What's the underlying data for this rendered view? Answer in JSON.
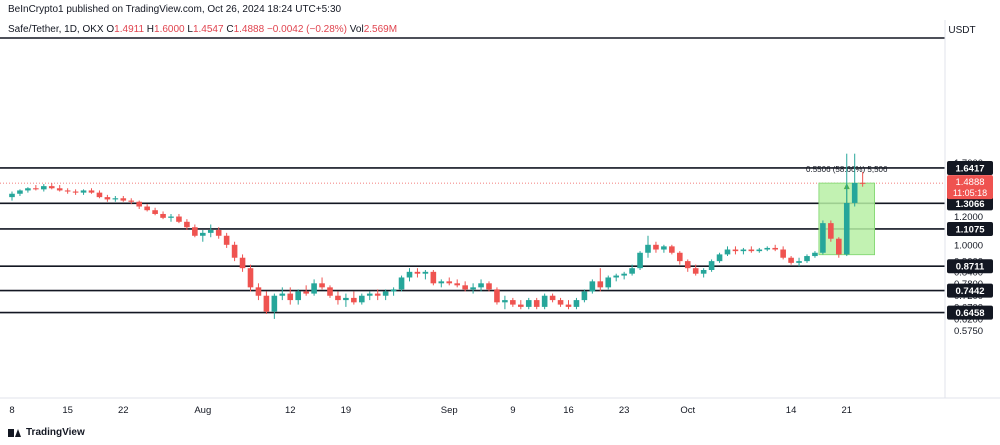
{
  "header": {
    "publish_line": "BeInCrypto1 published on TradingView.com, Oct 26, 2024 18:24 UTC+5:30",
    "symbol": "Safe/Tether, 1D, OKX",
    "o_label": "O",
    "o_value": "1.4911",
    "h_label": "H",
    "h_value": "1.6000",
    "l_label": "L",
    "l_value": "1.4547",
    "c_label": "C",
    "c_value": "1.4888",
    "change": "−0.0042 (−0.28%)",
    "vol_label": "Vol",
    "vol_value": "2.569M"
  },
  "footer": {
    "brand": "TradingView"
  },
  "colors": {
    "up": "#26a69a",
    "down": "#ef5350",
    "level_line": "#131722",
    "current_price": "#ef5350",
    "measure_fill": "#b7f0a4",
    "measure_border": "#7cd46b"
  },
  "chart_data": {
    "type": "candlestick",
    "currency": "USDT",
    "y_axis_ticks": [
      "1.7000",
      "1.4000",
      "1.2000",
      "1.0000",
      "0.9000",
      "0.8400",
      "0.7800",
      "0.7200",
      "0.6700",
      "0.6200",
      "0.5750"
    ],
    "x_axis_ticks": [
      "8",
      "15",
      "22",
      "Aug",
      "12",
      "19",
      "Sep",
      "9",
      "16",
      "23",
      "Oct",
      "14",
      "21"
    ],
    "x_tick_indices": [
      0,
      7,
      14,
      24,
      35,
      42,
      55,
      63,
      70,
      77,
      85,
      98,
      105
    ],
    "key_levels": [
      "1.6417",
      "1.3066",
      "1.1075",
      "0.8711",
      "0.7442",
      "0.6458"
    ],
    "current_price": {
      "value": "1.4888",
      "countdown": "11:05:18"
    },
    "measure": {
      "label": "0.5506 (58.66%) 5,506",
      "from_value": 0.938,
      "to_value": 1.4888,
      "start_index": 102,
      "end_index": 108
    },
    "candles": [
      [
        1.36,
        1.41,
        1.33,
        1.39
      ],
      [
        1.39,
        1.43,
        1.37,
        1.42
      ],
      [
        1.42,
        1.45,
        1.4,
        1.44
      ],
      [
        1.44,
        1.47,
        1.42,
        1.43
      ],
      [
        1.43,
        1.48,
        1.41,
        1.46
      ],
      [
        1.46,
        1.49,
        1.43,
        1.44
      ],
      [
        1.44,
        1.47,
        1.41,
        1.42
      ],
      [
        1.42,
        1.44,
        1.39,
        1.41
      ],
      [
        1.41,
        1.43,
        1.38,
        1.4
      ],
      [
        1.4,
        1.43,
        1.38,
        1.42
      ],
      [
        1.42,
        1.44,
        1.39,
        1.4
      ],
      [
        1.4,
        1.42,
        1.35,
        1.36
      ],
      [
        1.36,
        1.38,
        1.32,
        1.34
      ],
      [
        1.34,
        1.37,
        1.32,
        1.35
      ],
      [
        1.35,
        1.37,
        1.32,
        1.33
      ],
      [
        1.33,
        1.35,
        1.3,
        1.32
      ],
      [
        1.32,
        1.33,
        1.26,
        1.28
      ],
      [
        1.28,
        1.3,
        1.24,
        1.25
      ],
      [
        1.25,
        1.27,
        1.21,
        1.22
      ],
      [
        1.22,
        1.24,
        1.18,
        1.19
      ],
      [
        1.19,
        1.22,
        1.16,
        1.2
      ],
      [
        1.2,
        1.22,
        1.15,
        1.16
      ],
      [
        1.16,
        1.18,
        1.1,
        1.12
      ],
      [
        1.12,
        1.14,
        1.05,
        1.06
      ],
      [
        1.06,
        1.1,
        1.02,
        1.08
      ],
      [
        1.08,
        1.14,
        1.05,
        1.1
      ],
      [
        1.1,
        1.12,
        1.04,
        1.06
      ],
      [
        1.06,
        1.08,
        0.98,
        1.0
      ],
      [
        1.0,
        1.02,
        0.9,
        0.92
      ],
      [
        0.92,
        0.94,
        0.84,
        0.86
      ],
      [
        0.86,
        0.88,
        0.74,
        0.76
      ],
      [
        0.76,
        0.78,
        0.7,
        0.72
      ],
      [
        0.72,
        0.74,
        0.64,
        0.65
      ],
      [
        0.65,
        0.73,
        0.62,
        0.72
      ],
      [
        0.72,
        0.76,
        0.7,
        0.73
      ],
      [
        0.73,
        0.76,
        0.68,
        0.7
      ],
      [
        0.7,
        0.75,
        0.68,
        0.74
      ],
      [
        0.74,
        0.77,
        0.72,
        0.73
      ],
      [
        0.73,
        0.8,
        0.72,
        0.78
      ],
      [
        0.78,
        0.81,
        0.75,
        0.76
      ],
      [
        0.76,
        0.77,
        0.71,
        0.72
      ],
      [
        0.72,
        0.74,
        0.68,
        0.7
      ],
      [
        0.7,
        0.73,
        0.67,
        0.71
      ],
      [
        0.71,
        0.74,
        0.68,
        0.69
      ],
      [
        0.69,
        0.73,
        0.68,
        0.72
      ],
      [
        0.72,
        0.74,
        0.7,
        0.73
      ],
      [
        0.73,
        0.75,
        0.7,
        0.72
      ],
      [
        0.72,
        0.75,
        0.7,
        0.74
      ],
      [
        0.74,
        0.76,
        0.72,
        0.75
      ],
      [
        0.75,
        0.82,
        0.74,
        0.81
      ],
      [
        0.81,
        0.86,
        0.79,
        0.84
      ],
      [
        0.84,
        0.86,
        0.81,
        0.83
      ],
      [
        0.83,
        0.85,
        0.8,
        0.84
      ],
      [
        0.84,
        0.85,
        0.77,
        0.78
      ],
      [
        0.78,
        0.8,
        0.76,
        0.79
      ],
      [
        0.79,
        0.81,
        0.77,
        0.78
      ],
      [
        0.78,
        0.8,
        0.76,
        0.77
      ],
      [
        0.77,
        0.79,
        0.74,
        0.75
      ],
      [
        0.75,
        0.78,
        0.73,
        0.76
      ],
      [
        0.76,
        0.8,
        0.74,
        0.78
      ],
      [
        0.78,
        0.79,
        0.74,
        0.75
      ],
      [
        0.75,
        0.76,
        0.68,
        0.69
      ],
      [
        0.69,
        0.72,
        0.66,
        0.7
      ],
      [
        0.7,
        0.71,
        0.67,
        0.68
      ],
      [
        0.68,
        0.7,
        0.66,
        0.67
      ],
      [
        0.67,
        0.71,
        0.66,
        0.7
      ],
      [
        0.7,
        0.71,
        0.66,
        0.67
      ],
      [
        0.67,
        0.73,
        0.66,
        0.72
      ],
      [
        0.72,
        0.73,
        0.69,
        0.7
      ],
      [
        0.7,
        0.71,
        0.67,
        0.68
      ],
      [
        0.68,
        0.7,
        0.66,
        0.67
      ],
      [
        0.67,
        0.71,
        0.66,
        0.7
      ],
      [
        0.7,
        0.75,
        0.69,
        0.74
      ],
      [
        0.74,
        0.8,
        0.73,
        0.79
      ],
      [
        0.79,
        0.86,
        0.74,
        0.76
      ],
      [
        0.76,
        0.82,
        0.75,
        0.81
      ],
      [
        0.81,
        0.83,
        0.79,
        0.82
      ],
      [
        0.82,
        0.84,
        0.8,
        0.83
      ],
      [
        0.83,
        0.88,
        0.82,
        0.86
      ],
      [
        0.86,
        0.96,
        0.85,
        0.95
      ],
      [
        0.95,
        1.06,
        0.92,
        1.0
      ],
      [
        1.0,
        1.02,
        0.95,
        0.97
      ],
      [
        0.97,
        1.0,
        0.95,
        0.99
      ],
      [
        0.99,
        1.0,
        0.94,
        0.95
      ],
      [
        0.95,
        0.96,
        0.88,
        0.9
      ],
      [
        0.9,
        0.91,
        0.84,
        0.86
      ],
      [
        0.86,
        0.88,
        0.82,
        0.83
      ],
      [
        0.83,
        0.86,
        0.81,
        0.85
      ],
      [
        0.85,
        0.91,
        0.84,
        0.9
      ],
      [
        0.9,
        0.95,
        0.89,
        0.94
      ],
      [
        0.94,
        0.99,
        0.93,
        0.97
      ],
      [
        0.97,
        0.99,
        0.94,
        0.96
      ],
      [
        0.96,
        0.98,
        0.94,
        0.97
      ],
      [
        0.97,
        0.99,
        0.95,
        0.96
      ],
      [
        0.96,
        0.98,
        0.95,
        0.97
      ],
      [
        0.97,
        0.99,
        0.96,
        0.98
      ],
      [
        0.98,
        1.0,
        0.96,
        0.97
      ],
      [
        0.97,
        0.99,
        0.91,
        0.92
      ],
      [
        0.92,
        0.93,
        0.88,
        0.89
      ],
      [
        0.89,
        0.92,
        0.87,
        0.9
      ],
      [
        0.9,
        0.94,
        0.89,
        0.93
      ],
      [
        0.93,
        0.96,
        0.92,
        0.95
      ],
      [
        0.95,
        1.17,
        0.94,
        1.15
      ],
      [
        1.15,
        1.17,
        1.02,
        1.04
      ],
      [
        1.04,
        1.05,
        0.92,
        0.94
      ],
      [
        0.94,
        1.8,
        0.93,
        1.31
      ],
      [
        1.31,
        1.8,
        1.28,
        1.49
      ],
      [
        1.4911,
        1.6,
        1.4547,
        1.4888
      ]
    ]
  }
}
